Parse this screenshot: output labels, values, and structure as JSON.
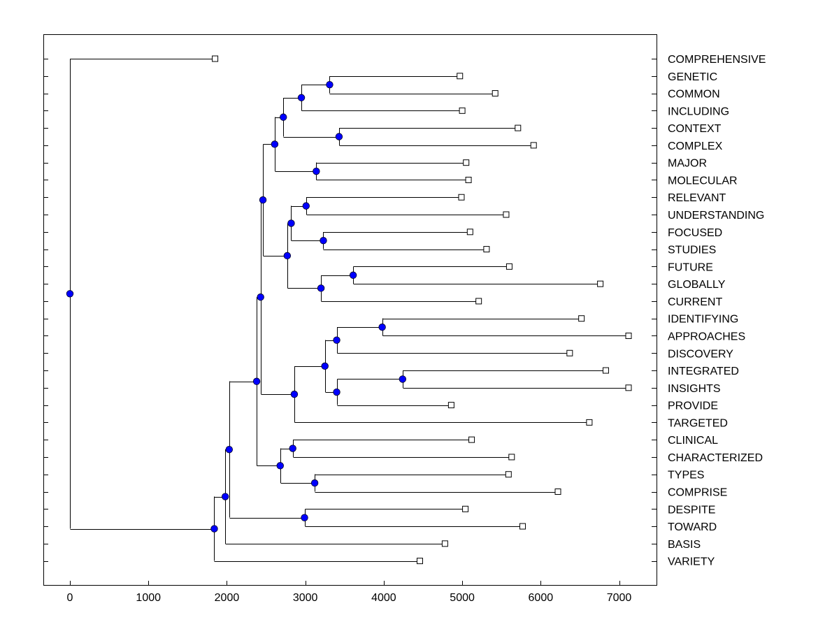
{
  "chart_data": {
    "type": "dendrogram",
    "xlim": [
      -350,
      7500
    ],
    "x_ticks": [
      0,
      1000,
      2000,
      3000,
      4000,
      5000,
      6000,
      7000
    ],
    "node_color": "#0000ff",
    "leaf_marker": "open-square",
    "leaves": [
      {
        "label": "COMPREHENSIVE",
        "x": 1850
      },
      {
        "label": "GENETIC",
        "x": 4970
      },
      {
        "label": "COMMON",
        "x": 5420
      },
      {
        "label": "INCLUDING",
        "x": 5000
      },
      {
        "label": "CONTEXT",
        "x": 5710
      },
      {
        "label": "COMPLEX",
        "x": 5910
      },
      {
        "label": "MAJOR",
        "x": 5050
      },
      {
        "label": "MOLECULAR",
        "x": 5080
      },
      {
        "label": "RELEVANT",
        "x": 4990
      },
      {
        "label": "UNDERSTANDING",
        "x": 5560
      },
      {
        "label": "FOCUSED",
        "x": 5100
      },
      {
        "label": "STUDIES",
        "x": 5310
      },
      {
        "label": "FUTURE",
        "x": 5600
      },
      {
        "label": "GLOBALLY",
        "x": 6760
      },
      {
        "label": "CURRENT",
        "x": 5210
      },
      {
        "label": "IDENTIFYING",
        "x": 6520
      },
      {
        "label": "APPROACHES",
        "x": 7120
      },
      {
        "label": "DISCOVERY",
        "x": 6370
      },
      {
        "label": "INTEGRATED",
        "x": 6830
      },
      {
        "label": "INSIGHTS",
        "x": 7120
      },
      {
        "label": "PROVIDE",
        "x": 4860
      },
      {
        "label": "TARGETED",
        "x": 6620
      },
      {
        "label": "CLINICAL",
        "x": 5120
      },
      {
        "label": "CHARACTERIZED",
        "x": 5630
      },
      {
        "label": "TYPES",
        "x": 5590
      },
      {
        "label": "COMPRISE",
        "x": 6220
      },
      {
        "label": "DESPITE",
        "x": 5040
      },
      {
        "label": "TOWARD",
        "x": 5770
      },
      {
        "label": "BASIS",
        "x": 4780
      },
      {
        "label": "VARIETY",
        "x": 4460
      }
    ],
    "tree": {
      "x": 0,
      "children": [
        {
          "leaf": 0
        },
        {
          "x": 1840,
          "children": [
            {
              "x": 1980,
              "children": [
                {
                  "x": 2030,
                  "children": [
                    {
                      "x": 2380,
                      "children": [
                        {
                          "x": 2430,
                          "children": [
                            {
                              "x": 2460,
                              "children": [
                                {
                                  "x": 2610,
                                  "children": [
                                    {
                                      "x": 2720,
                                      "children": [
                                        {
                                          "x": 2950,
                                          "children": [
                                            {
                                              "x": 3310,
                                              "children": [
                                                {
                                                  "leaf": 1
                                                },
                                                {
                                                  "leaf": 2
                                                }
                                              ]
                                            },
                                            {
                                              "leaf": 3
                                            }
                                          ]
                                        },
                                        {
                                          "x": 3430,
                                          "children": [
                                            {
                                              "leaf": 4
                                            },
                                            {
                                              "leaf": 5
                                            }
                                          ]
                                        }
                                      ]
                                    },
                                    {
                                      "x": 3140,
                                      "children": [
                                        {
                                          "leaf": 6
                                        },
                                        {
                                          "leaf": 7
                                        }
                                      ]
                                    }
                                  ]
                                },
                                {
                                  "x": 2770,
                                  "children": [
                                    {
                                      "x": 2820,
                                      "children": [
                                        {
                                          "x": 3010,
                                          "children": [
                                            {
                                              "leaf": 8
                                            },
                                            {
                                              "leaf": 9
                                            }
                                          ]
                                        },
                                        {
                                          "x": 3230,
                                          "children": [
                                            {
                                              "leaf": 10
                                            },
                                            {
                                              "leaf": 11
                                            }
                                          ]
                                        }
                                      ]
                                    },
                                    {
                                      "x": 3200,
                                      "children": [
                                        {
                                          "x": 3610,
                                          "children": [
                                            {
                                              "leaf": 12
                                            },
                                            {
                                              "leaf": 13
                                            }
                                          ]
                                        },
                                        {
                                          "leaf": 14
                                        }
                                      ]
                                    }
                                  ]
                                }
                              ]
                            },
                            {
                              "x": 2860,
                              "children": [
                                {
                                  "x": 3250,
                                  "children": [
                                    {
                                      "x": 3400,
                                      "children": [
                                        {
                                          "x": 3980,
                                          "children": [
                                            {
                                              "leaf": 15
                                            },
                                            {
                                              "leaf": 16
                                            }
                                          ]
                                        },
                                        {
                                          "leaf": 17
                                        }
                                      ]
                                    },
                                    {
                                      "x": 3400,
                                      "children": [
                                        {
                                          "x": 4240,
                                          "children": [
                                            {
                                              "leaf": 18
                                            },
                                            {
                                              "leaf": 19
                                            }
                                          ]
                                        },
                                        {
                                          "leaf": 20
                                        }
                                      ]
                                    }
                                  ]
                                },
                                {
                                  "leaf": 21
                                }
                              ]
                            }
                          ]
                        },
                        {
                          "x": 2680,
                          "children": [
                            {
                              "x": 2840,
                              "children": [
                                {
                                  "leaf": 22
                                },
                                {
                                  "leaf": 23
                                }
                              ]
                            },
                            {
                              "x": 3120,
                              "children": [
                                {
                                  "leaf": 24
                                },
                                {
                                  "leaf": 25
                                }
                              ]
                            }
                          ]
                        }
                      ]
                    },
                    {
                      "x": 2990,
                      "children": [
                        {
                          "leaf": 26
                        },
                        {
                          "leaf": 27
                        }
                      ]
                    }
                  ]
                },
                {
                  "leaf": 28
                }
              ]
            },
            {
              "leaf": 29
            }
          ]
        }
      ]
    }
  }
}
